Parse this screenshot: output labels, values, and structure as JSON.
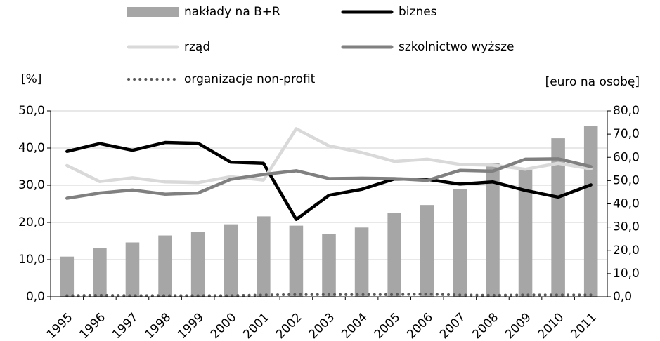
{
  "chart_data": {
    "type": "combo",
    "y_label": "[%]",
    "y2_label": "[euro na osobę]",
    "categories": [
      "1995",
      "1996",
      "1997",
      "1998",
      "1999",
      "2000",
      "2001",
      "2002",
      "2003",
      "2004",
      "2005",
      "2006",
      "2007",
      "2008",
      "2009",
      "2010",
      "2011"
    ],
    "series": [
      {
        "name": "nakłady na B+R",
        "type": "bar",
        "axis": "y2",
        "color": "#a6a6a6",
        "values": [
          17.3,
          21.0,
          23.4,
          26.4,
          28.0,
          31.2,
          34.6,
          30.6,
          27.0,
          29.8,
          36.2,
          39.5,
          46.2,
          57.4,
          54.7,
          68.2,
          73.6
        ]
      },
      {
        "name": "biznes",
        "type": "line",
        "color": "#000000",
        "dash": "solid",
        "values": [
          39.1,
          41.2,
          39.4,
          41.5,
          41.3,
          36.2,
          35.9,
          20.8,
          27.3,
          28.9,
          31.7,
          31.6,
          30.3,
          30.9,
          28.6,
          26.8,
          30.1
        ]
      },
      {
        "name": "rząd",
        "type": "line",
        "color": "#d9d9d9",
        "dash": "solid",
        "values": [
          35.3,
          31.0,
          32.0,
          30.9,
          30.7,
          32.3,
          31.4,
          45.2,
          40.6,
          38.8,
          36.4,
          37.0,
          35.6,
          35.4,
          34.3,
          35.9,
          34.4
        ]
      },
      {
        "name": "szkolnictwo wyższe",
        "type": "line",
        "color": "#808080",
        "dash": "solid",
        "values": [
          26.5,
          27.9,
          28.7,
          27.6,
          27.9,
          31.6,
          32.9,
          33.9,
          31.8,
          31.9,
          31.8,
          31.3,
          34.0,
          33.8,
          37.0,
          37.1,
          35.0
        ]
      },
      {
        "name": "organizacje non-profit",
        "type": "line",
        "color": "#595959",
        "dash": "dotted",
        "values": [
          0.3,
          0.4,
          0.3,
          0.3,
          0.3,
          0.3,
          0.5,
          0.6,
          0.6,
          0.6,
          0.6,
          0.7,
          0.5,
          0.4,
          0.5,
          0.5,
          0.5
        ]
      }
    ],
    "ylim": [
      0,
      50
    ],
    "yticks": [
      {
        "value": 0,
        "label": "0,0"
      },
      {
        "value": 10,
        "label": "10,0"
      },
      {
        "value": 20,
        "label": "20,0"
      },
      {
        "value": 30,
        "label": "30,0"
      },
      {
        "value": 40,
        "label": "40,0"
      },
      {
        "value": 50,
        "label": "50,0"
      }
    ],
    "y2lim": [
      0,
      80
    ],
    "y2ticks": [
      {
        "value": 0,
        "label": "0,0"
      },
      {
        "value": 10,
        "label": "10,0"
      },
      {
        "value": 20,
        "label": "20,0"
      },
      {
        "value": 30,
        "label": "30,0"
      },
      {
        "value": 40,
        "label": "40,0"
      },
      {
        "value": 50,
        "label": "50,0"
      },
      {
        "value": 60,
        "label": "60,0"
      },
      {
        "value": 70,
        "label": "70,0"
      },
      {
        "value": 80,
        "label": "80,0"
      }
    ],
    "grid": true,
    "legend": "top"
  }
}
